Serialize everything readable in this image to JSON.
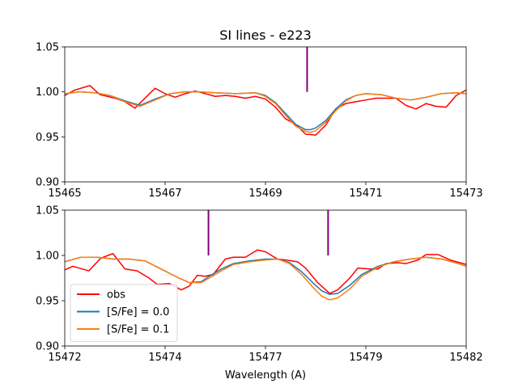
{
  "chart_data": [
    {
      "type": "line",
      "title": "SI lines - e223",
      "xlabel": "",
      "ylabel": "",
      "xlim": [
        15465,
        15473
      ],
      "ylim": [
        0.9,
        1.05
      ],
      "xticks": [
        15465,
        15467,
        15469,
        15471,
        15473
      ],
      "xtick_labels": [
        "15465",
        "15467",
        "15469",
        "15471",
        "15473"
      ],
      "yticks": [
        0.9,
        0.95,
        1.0,
        1.05
      ],
      "ytick_labels": [
        "0.90",
        "0.95",
        "1.00",
        "1.05"
      ],
      "grid": false,
      "line_markers": [
        {
          "x": 15469.83,
          "y_bottom": 1.0,
          "y_top": 1.05,
          "color": "#800080"
        }
      ],
      "series": [
        {
          "name": "obs",
          "color": "#ff0000",
          "x": [
            15465.0,
            15465.2,
            15465.5,
            15465.7,
            15466.0,
            15466.2,
            15466.4,
            15466.6,
            15466.8,
            15467.0,
            15467.2,
            15467.4,
            15467.6,
            15467.8,
            15468.0,
            15468.2,
            15468.4,
            15468.6,
            15468.8,
            15469.0,
            15469.2,
            15469.4,
            15469.6,
            15469.8,
            15470.0,
            15470.2,
            15470.4,
            15470.6,
            15470.8,
            15471.0,
            15471.2,
            15471.4,
            15471.6,
            15471.8,
            15472.0,
            15472.2,
            15472.4,
            15472.6,
            15472.8,
            15473.0
          ],
          "y": [
            0.996,
            1.002,
            1.007,
            0.997,
            0.993,
            0.989,
            0.982,
            0.993,
            1.004,
            0.998,
            0.994,
            0.998,
            1.001,
            0.998,
            0.995,
            0.996,
            0.995,
            0.993,
            0.995,
            0.992,
            0.983,
            0.97,
            0.964,
            0.953,
            0.952,
            0.963,
            0.981,
            0.987,
            0.989,
            0.991,
            0.993,
            0.993,
            0.993,
            0.985,
            0.981,
            0.987,
            0.984,
            0.983,
            0.996,
            1.002
          ]
        },
        {
          "name": "",
          "color": "#1f77b4",
          "x": [
            15465.0,
            15465.3,
            15465.6,
            15465.9,
            15466.2,
            15466.5,
            15466.8,
            15467.1,
            15467.4,
            15467.7,
            15468.0,
            15468.4,
            15468.8,
            15469.0,
            15469.2,
            15469.4,
            15469.6,
            15469.8,
            15469.9,
            15470.0,
            15470.2,
            15470.4,
            15470.6,
            15470.8,
            15471.0,
            15471.3,
            15471.6,
            15471.9,
            15472.2,
            15472.5,
            15472.8,
            15473.0
          ],
          "y": [
            0.998,
            1.0,
            0.999,
            0.996,
            0.99,
            0.985,
            0.992,
            0.998,
            1.0,
            1.0,
            0.999,
            0.998,
            0.999,
            0.996,
            0.988,
            0.976,
            0.964,
            0.958,
            0.958,
            0.96,
            0.968,
            0.981,
            0.991,
            0.996,
            0.998,
            0.997,
            0.993,
            0.991,
            0.994,
            0.998,
            0.999,
            0.998
          ]
        },
        {
          "name": "",
          "color": "#ff7f0e",
          "x": [
            15465.0,
            15465.3,
            15465.6,
            15465.9,
            15466.2,
            15466.5,
            15466.8,
            15467.1,
            15467.4,
            15467.7,
            15468.0,
            15468.4,
            15468.8,
            15469.0,
            15469.2,
            15469.4,
            15469.6,
            15469.8,
            15469.9,
            15470.0,
            15470.2,
            15470.4,
            15470.6,
            15470.8,
            15471.0,
            15471.3,
            15471.6,
            15471.9,
            15472.2,
            15472.5,
            15472.8,
            15473.0
          ],
          "y": [
            0.998,
            1.0,
            0.999,
            0.996,
            0.989,
            0.984,
            0.991,
            0.998,
            1.0,
            1.0,
            0.999,
            0.998,
            0.999,
            0.995,
            0.987,
            0.974,
            0.962,
            0.956,
            0.955,
            0.957,
            0.966,
            0.979,
            0.99,
            0.996,
            0.998,
            0.997,
            0.993,
            0.991,
            0.994,
            0.998,
            0.999,
            0.998
          ]
        }
      ]
    },
    {
      "type": "line",
      "title": "",
      "xlabel": "Wavelength (A)",
      "ylabel": "",
      "xlim": [
        15472,
        15482
      ],
      "ylim": [
        0.9,
        1.05
      ],
      "xticks": [
        15472,
        15474.5,
        15477,
        15479.5,
        15482
      ],
      "xtick_labels": [
        "15472",
        "15474",
        "15477",
        "15479",
        "15482"
      ],
      "yticks": [
        0.9,
        0.95,
        1.0,
        1.05
      ],
      "ytick_labels": [
        "0.90",
        "0.95",
        "1.00",
        "1.05"
      ],
      "grid": false,
      "legend_position": "lower-left",
      "line_markers": [
        {
          "x": 15475.58,
          "y_bottom": 1.0,
          "y_top": 1.05,
          "color": "#800080"
        },
        {
          "x": 15478.56,
          "y_bottom": 1.0,
          "y_top": 1.05,
          "color": "#800080"
        }
      ],
      "series": [
        {
          "name": "obs",
          "color": "#ff0000",
          "x": [
            15472.0,
            15472.2,
            15472.6,
            15472.9,
            15473.2,
            15473.5,
            15473.8,
            15474.1,
            15474.3,
            15474.6,
            15474.9,
            15475.1,
            15475.3,
            15475.5,
            15475.7,
            15476.0,
            15476.2,
            15476.5,
            15476.8,
            15477.0,
            15477.3,
            15477.5,
            15477.8,
            15478.0,
            15478.3,
            15478.6,
            15478.8,
            15479.1,
            15479.3,
            15479.6,
            15479.8,
            15480.0,
            15480.3,
            15480.5,
            15480.8,
            15481.0,
            15481.3,
            15481.6,
            15482.0
          ],
          "y": [
            0.984,
            0.988,
            0.983,
            0.997,
            1.002,
            0.985,
            0.983,
            0.975,
            0.968,
            0.969,
            0.962,
            0.966,
            0.978,
            0.977,
            0.979,
            0.996,
            0.998,
            0.998,
            1.006,
            1.004,
            0.996,
            0.995,
            0.993,
            0.986,
            0.97,
            0.958,
            0.962,
            0.975,
            0.986,
            0.985,
            0.985,
            0.991,
            0.992,
            0.991,
            0.995,
            1.001,
            1.001,
            0.995,
            0.99
          ]
        },
        {
          "name": "[S/Fe] = 0.0",
          "color": "#1f77b4",
          "x": [
            15472.0,
            15472.4,
            15472.8,
            15473.2,
            15473.6,
            15474.0,
            15474.4,
            15474.8,
            15475.1,
            15475.4,
            15475.6,
            15475.9,
            15476.2,
            15476.6,
            15477.0,
            15477.3,
            15477.6,
            15477.9,
            15478.2,
            15478.4,
            15478.6,
            15478.8,
            15479.1,
            15479.4,
            15479.8,
            15480.2,
            15480.6,
            15481.0,
            15481.4,
            15481.8,
            15482.0
          ],
          "y": [
            0.993,
            0.998,
            0.998,
            0.996,
            0.996,
            0.994,
            0.985,
            0.976,
            0.97,
            0.971,
            0.977,
            0.985,
            0.991,
            0.994,
            0.996,
            0.996,
            0.992,
            0.982,
            0.969,
            0.961,
            0.957,
            0.958,
            0.967,
            0.979,
            0.988,
            0.993,
            0.996,
            0.998,
            0.996,
            0.991,
            0.988
          ]
        },
        {
          "name": "[S/Fe] = 0.1",
          "color": "#ff7f0e",
          "x": [
            15472.0,
            15472.4,
            15472.8,
            15473.2,
            15473.6,
            15474.0,
            15474.4,
            15474.8,
            15475.1,
            15475.4,
            15475.6,
            15475.9,
            15476.2,
            15476.6,
            15477.0,
            15477.3,
            15477.6,
            15477.9,
            15478.2,
            15478.4,
            15478.6,
            15478.8,
            15479.1,
            15479.4,
            15479.8,
            15480.2,
            15480.6,
            15481.0,
            15481.4,
            15481.8,
            15482.0
          ],
          "y": [
            0.993,
            0.998,
            0.998,
            0.996,
            0.996,
            0.994,
            0.985,
            0.976,
            0.97,
            0.97,
            0.975,
            0.983,
            0.99,
            0.993,
            0.995,
            0.996,
            0.991,
            0.979,
            0.964,
            0.955,
            0.951,
            0.953,
            0.963,
            0.977,
            0.987,
            0.993,
            0.996,
            0.998,
            0.996,
            0.991,
            0.988
          ]
        }
      ]
    }
  ]
}
